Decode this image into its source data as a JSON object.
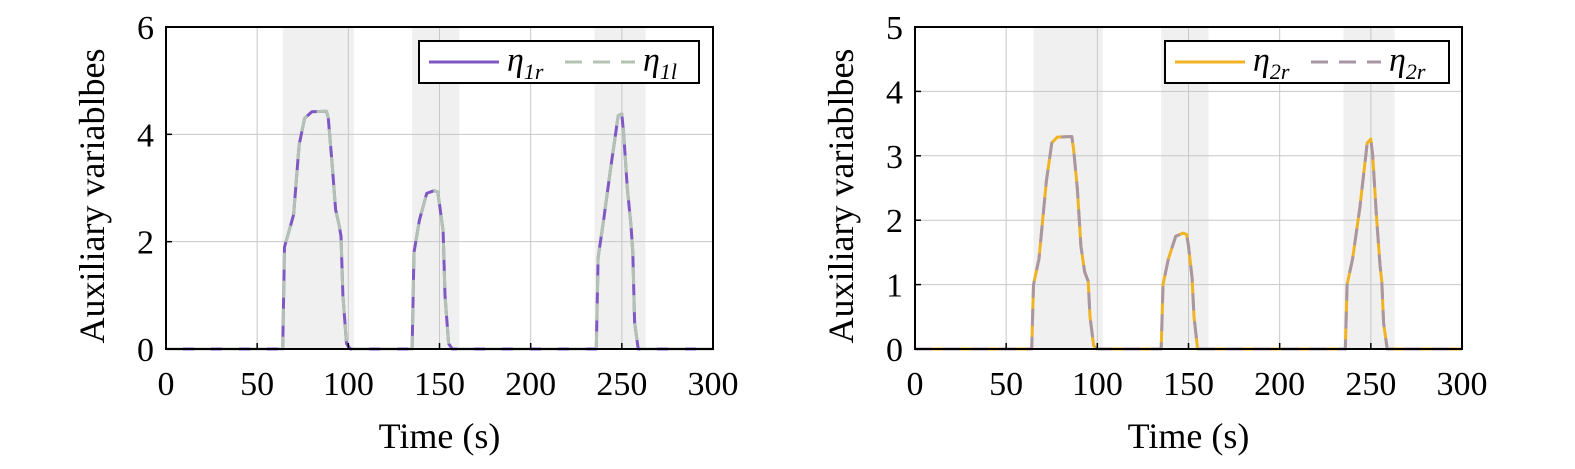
{
  "chart_data": [
    {
      "type": "line",
      "xlabel": "Time (s)",
      "ylabel": "Auxiliary variablbes",
      "xlim": [
        0,
        300
      ],
      "ylim": [
        0,
        6
      ],
      "xticks": [
        0,
        50,
        100,
        150,
        200,
        250,
        300
      ],
      "yticks": [
        0,
        2,
        4,
        6
      ],
      "grid": true,
      "legend_position": "top-right",
      "shaded_intervals": [
        [
          64,
          103
        ],
        [
          135,
          161
        ],
        [
          235,
          263
        ]
      ],
      "series": [
        {
          "name": "η1r",
          "label_base": "η",
          "label_sub": "1r",
          "color": "#7e57c2",
          "style": "solid",
          "points": [
            [
              0,
              0
            ],
            [
              64,
              0
            ],
            [
              65,
              1.9
            ],
            [
              70,
              2.5
            ],
            [
              73,
              3.8
            ],
            [
              76,
              4.3
            ],
            [
              80,
              4.42
            ],
            [
              88,
              4.43
            ],
            [
              89,
              4.3
            ],
            [
              91,
              3.5
            ],
            [
              93,
              2.6
            ],
            [
              95,
              2.3
            ],
            [
              96,
              2.1
            ],
            [
              97,
              1.0
            ],
            [
              99,
              0.1
            ],
            [
              101,
              0
            ],
            [
              135,
              0
            ],
            [
              136,
              1.8
            ],
            [
              139,
              2.4
            ],
            [
              143,
              2.9
            ],
            [
              147,
              2.95
            ],
            [
              149,
              2.93
            ],
            [
              150,
              2.7
            ],
            [
              152,
              2.2
            ],
            [
              153,
              1.0
            ],
            [
              155,
              0.1
            ],
            [
              157,
              0
            ],
            [
              236,
              0
            ],
            [
              237,
              1.7
            ],
            [
              240,
              2.4
            ],
            [
              244,
              3.4
            ],
            [
              248,
              4.35
            ],
            [
              250,
              4.38
            ],
            [
              251,
              4.0
            ],
            [
              253,
              3.0
            ],
            [
              255,
              2.3
            ],
            [
              256,
              1.8
            ],
            [
              257,
              0.5
            ],
            [
              259,
              0
            ],
            [
              300,
              0
            ]
          ]
        },
        {
          "name": "η1l",
          "label_base": "η",
          "label_sub": "1l",
          "color": "#b4c2b4",
          "style": "dashed",
          "points": [
            [
              0,
              0
            ],
            [
              64,
              0
            ],
            [
              65,
              1.9
            ],
            [
              70,
              2.5
            ],
            [
              73,
              3.8
            ],
            [
              76,
              4.3
            ],
            [
              80,
              4.42
            ],
            [
              88,
              4.43
            ],
            [
              89,
              4.3
            ],
            [
              91,
              3.5
            ],
            [
              93,
              2.6
            ],
            [
              95,
              2.3
            ],
            [
              96,
              2.1
            ],
            [
              97,
              1.0
            ],
            [
              99,
              0.1
            ],
            [
              101,
              0
            ],
            [
              135,
              0
            ],
            [
              136,
              1.8
            ],
            [
              139,
              2.4
            ],
            [
              143,
              2.9
            ],
            [
              147,
              2.95
            ],
            [
              149,
              2.93
            ],
            [
              150,
              2.7
            ],
            [
              152,
              2.2
            ],
            [
              153,
              1.0
            ],
            [
              155,
              0.1
            ],
            [
              157,
              0
            ],
            [
              236,
              0
            ],
            [
              237,
              1.7
            ],
            [
              240,
              2.4
            ],
            [
              244,
              3.4
            ],
            [
              248,
              4.35
            ],
            [
              250,
              4.38
            ],
            [
              251,
              4.0
            ],
            [
              253,
              3.0
            ],
            [
              255,
              2.3
            ],
            [
              256,
              1.8
            ],
            [
              257,
              0.5
            ],
            [
              259,
              0
            ],
            [
              300,
              0
            ]
          ]
        }
      ]
    },
    {
      "type": "line",
      "xlabel": "Time (s)",
      "ylabel": "Auxiliary variablbes",
      "xlim": [
        0,
        300
      ],
      "ylim": [
        0,
        5
      ],
      "xticks": [
        0,
        50,
        100,
        150,
        200,
        250,
        300
      ],
      "yticks": [
        0,
        1,
        2,
        3,
        4,
        5
      ],
      "grid": true,
      "legend_position": "top-right",
      "shaded_intervals": [
        [
          65,
          103
        ],
        [
          135,
          161
        ],
        [
          235,
          263
        ]
      ],
      "series": [
        {
          "name": "η2r",
          "label_base": "η",
          "label_sub": "2r",
          "color": "#f0b323",
          "style": "solid",
          "points": [
            [
              0,
              0
            ],
            [
              64,
              0
            ],
            [
              65,
              1.0
            ],
            [
              68,
              1.4
            ],
            [
              72,
              2.6
            ],
            [
              75,
              3.2
            ],
            [
              78,
              3.29
            ],
            [
              86,
              3.3
            ],
            [
              87,
              3.1
            ],
            [
              89,
              2.5
            ],
            [
              91,
              1.6
            ],
            [
              93,
              1.2
            ],
            [
              95,
              1.05
            ],
            [
              96,
              0.5
            ],
            [
              98,
              0.05
            ],
            [
              100,
              0
            ],
            [
              135,
              0
            ],
            [
              136,
              1.0
            ],
            [
              139,
              1.4
            ],
            [
              143,
              1.75
            ],
            [
              147,
              1.8
            ],
            [
              149,
              1.78
            ],
            [
              150,
              1.6
            ],
            [
              152,
              1.1
            ],
            [
              153,
              0.5
            ],
            [
              155,
              0
            ],
            [
              236,
              0
            ],
            [
              237,
              1.0
            ],
            [
              240,
              1.4
            ],
            [
              244,
              2.2
            ],
            [
              248,
              3.2
            ],
            [
              250,
              3.26
            ],
            [
              251,
              3.0
            ],
            [
              253,
              2.1
            ],
            [
              255,
              1.3
            ],
            [
              256,
              1.05
            ],
            [
              257,
              0.4
            ],
            [
              259,
              0
            ],
            [
              300,
              0
            ]
          ]
        },
        {
          "name": "η2r",
          "label_base": "η",
          "label_sub": "2r",
          "color": "#a996a5",
          "style": "dashed",
          "points": [
            [
              0,
              0
            ],
            [
              64,
              0
            ],
            [
              65,
              1.0
            ],
            [
              68,
              1.4
            ],
            [
              72,
              2.6
            ],
            [
              75,
              3.2
            ],
            [
              78,
              3.29
            ],
            [
              86,
              3.3
            ],
            [
              87,
              3.1
            ],
            [
              89,
              2.5
            ],
            [
              91,
              1.6
            ],
            [
              93,
              1.2
            ],
            [
              95,
              1.05
            ],
            [
              96,
              0.5
            ],
            [
              98,
              0.05
            ],
            [
              100,
              0
            ],
            [
              135,
              0
            ],
            [
              136,
              1.0
            ],
            [
              139,
              1.4
            ],
            [
              143,
              1.75
            ],
            [
              147,
              1.8
            ],
            [
              149,
              1.78
            ],
            [
              150,
              1.6
            ],
            [
              152,
              1.1
            ],
            [
              153,
              0.5
            ],
            [
              155,
              0
            ],
            [
              236,
              0
            ],
            [
              237,
              1.0
            ],
            [
              240,
              1.4
            ],
            [
              244,
              2.2
            ],
            [
              248,
              3.2
            ],
            [
              250,
              3.26
            ],
            [
              251,
              3.0
            ],
            [
              253,
              2.1
            ],
            [
              255,
              1.3
            ],
            [
              256,
              1.05
            ],
            [
              257,
              0.4
            ],
            [
              259,
              0
            ],
            [
              300,
              0
            ]
          ]
        }
      ]
    }
  ]
}
